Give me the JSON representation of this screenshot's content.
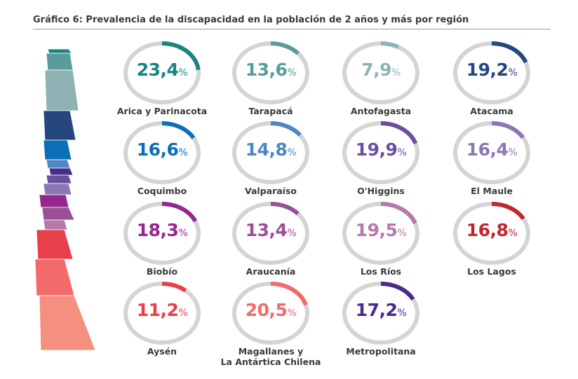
{
  "chart_data": {
    "type": "donut-grid",
    "title": "Gráfico 6: Prevalencia de la discapacidad en la población de 2 años y más por región",
    "unit": "%",
    "ring_track_color": "#d4d4d4",
    "regions": [
      {
        "name": "Arica y Parinacota",
        "value": 23.4,
        "label": "23,4",
        "color": "#1a8580"
      },
      {
        "name": "Tarapacá",
        "value": 13.6,
        "label": "13,6",
        "color": "#5a9c9c"
      },
      {
        "name": "Antofagasta",
        "value": 7.9,
        "label": "7,9",
        "color": "#8fb3b5"
      },
      {
        "name": "Atacama",
        "value": 19.2,
        "label": "19,2",
        "color": "#25477d"
      },
      {
        "name": "Coquimbo",
        "value": 16.6,
        "label": "16,6",
        "color": "#0a6fb8"
      },
      {
        "name": "Valparaíso",
        "value": 14.8,
        "label": "14,8",
        "color": "#4f86c6"
      },
      {
        "name": "O'Higgins",
        "value": 19.9,
        "label": "19,9",
        "color": "#6a4fa0"
      },
      {
        "name": "El Maule",
        "value": 16.4,
        "label": "16,4",
        "color": "#8b77b5"
      },
      {
        "name": "Biobío",
        "value": 18.3,
        "label": "18,3",
        "color": "#93278f"
      },
      {
        "name": "Araucanía",
        "value": 13.4,
        "label": "13,4",
        "color": "#9c4f96"
      },
      {
        "name": "Los Ríos",
        "value": 19.5,
        "label": "19,5",
        "color": "#b57aad"
      },
      {
        "name": "Los Lagos",
        "value": 16.8,
        "label": "16,8",
        "color": "#c0272d"
      },
      {
        "name": "Aysén",
        "value": 11.2,
        "label": "11,2",
        "color": "#e8404a"
      },
      {
        "name": "Magallanes y\nLa Antártica Chilena",
        "value": 20.5,
        "label": "20,5",
        "color": "#f26b6b"
      },
      {
        "name": "Metropolitana",
        "value": 17.2,
        "label": "17,2",
        "color": "#4a2a8a"
      }
    ],
    "map_colors": [
      "#1a8580",
      "#5a9c9c",
      "#8fb3b5",
      "#25477d",
      "#0a6fb8",
      "#4f86c6",
      "#4a2a8a",
      "#6a4fa0",
      "#8b77b5",
      "#93278f",
      "#9c4f96",
      "#b57aad",
      "#e8404a",
      "#f26b6b",
      "#f5907f"
    ]
  }
}
